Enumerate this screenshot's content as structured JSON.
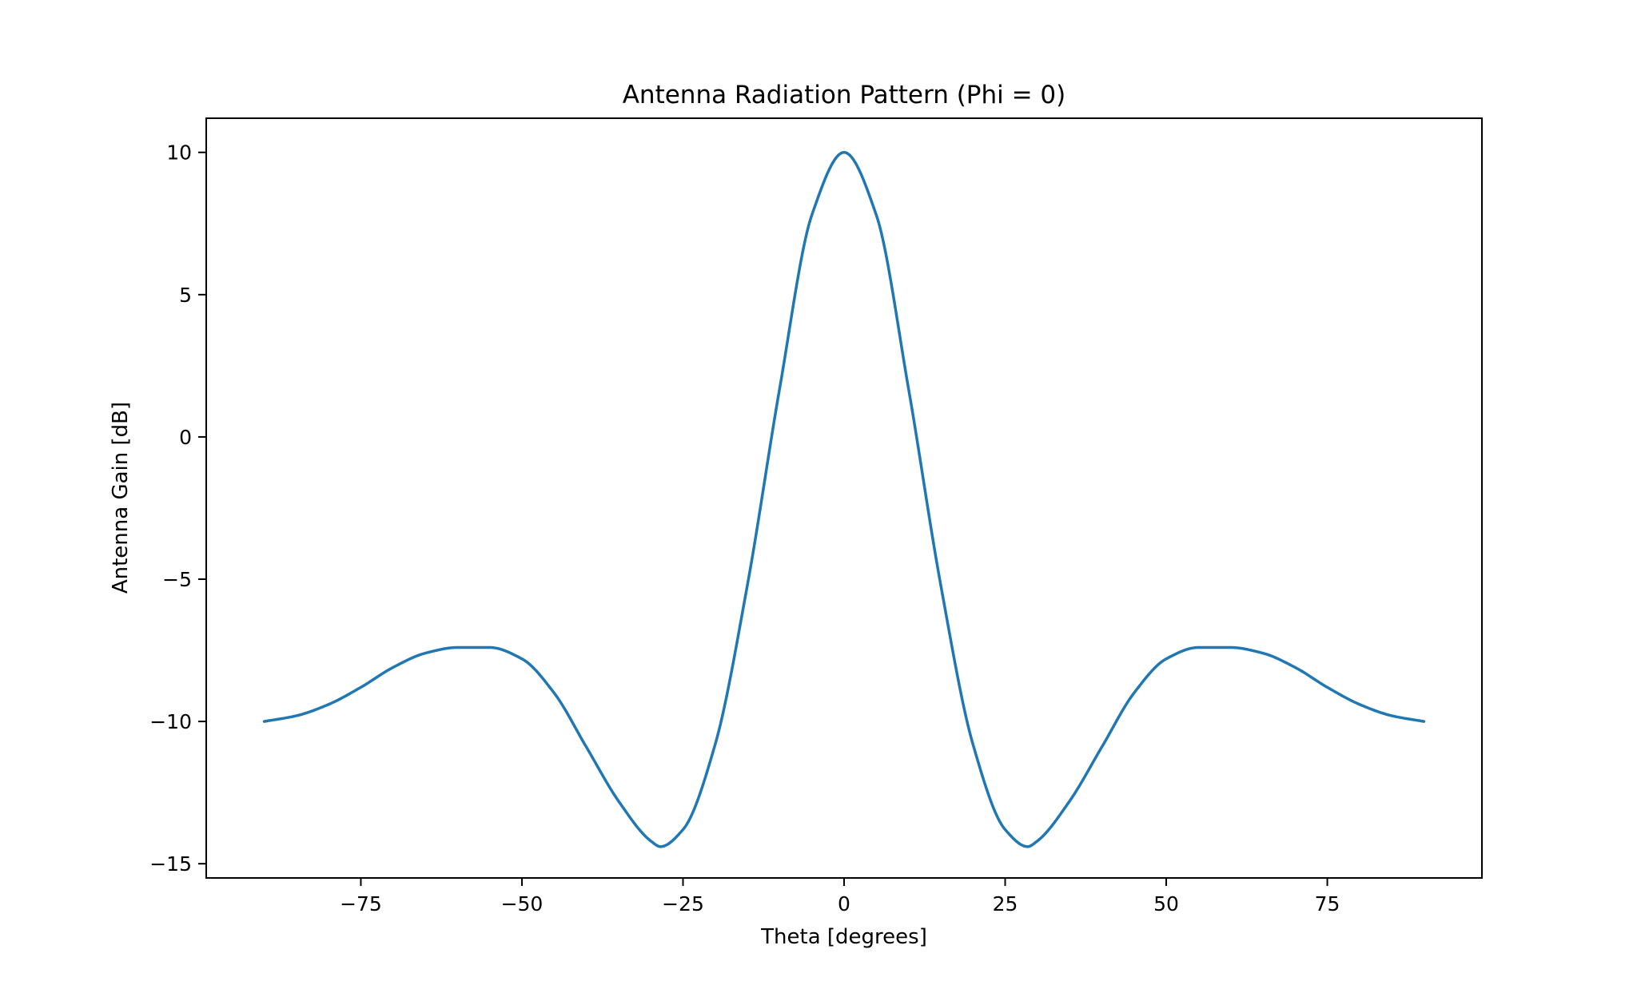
{
  "chart_data": {
    "type": "line",
    "title": "Antenna Radiation Pattern (Phi = 0)",
    "xlabel": "Theta [degrees]",
    "ylabel": "Antenna Gain [dB]",
    "xlim": [
      -99,
      99
    ],
    "ylim": [
      -15.5,
      11.2
    ],
    "xticks": [
      -75,
      -50,
      -25,
      0,
      25,
      50,
      75
    ],
    "yticks": [
      -15,
      -10,
      -5,
      0,
      5,
      10
    ],
    "xtick_labels": [
      "−75",
      "−50",
      "−25",
      "0",
      "25",
      "50",
      "75"
    ],
    "ytick_labels": [
      "−15",
      "−10",
      "−5",
      "0",
      "5",
      "10"
    ],
    "grid": false,
    "line_color": "#1f77b4",
    "series": [
      {
        "x": [
          -90,
          -85,
          -80,
          -75,
          -70,
          -65,
          -60,
          -55,
          -50,
          -45,
          -40,
          -35,
          -30,
          -28.5,
          -25,
          -20,
          -15,
          -10,
          -5,
          0,
          5,
          10,
          15,
          20,
          25,
          28.5,
          30,
          35,
          40,
          45,
          50,
          55,
          60,
          65,
          70,
          75,
          80,
          85,
          90
        ],
        "y": [
          -10,
          -9.8,
          -9.4,
          -8.8,
          -8.1,
          -7.6,
          -7.4,
          -7.4,
          -7.8,
          -9.0,
          -10.9,
          -12.8,
          -14.2,
          -14.4,
          -13.8,
          -10.8,
          -5.2,
          1.7,
          7.8,
          10.0,
          7.8,
          1.7,
          -5.2,
          -10.8,
          -13.8,
          -14.4,
          -14.2,
          -12.8,
          -10.9,
          -9.0,
          -7.8,
          -7.4,
          -7.4,
          -7.6,
          -8.1,
          -8.8,
          -9.4,
          -9.8,
          -10
        ]
      }
    ]
  }
}
